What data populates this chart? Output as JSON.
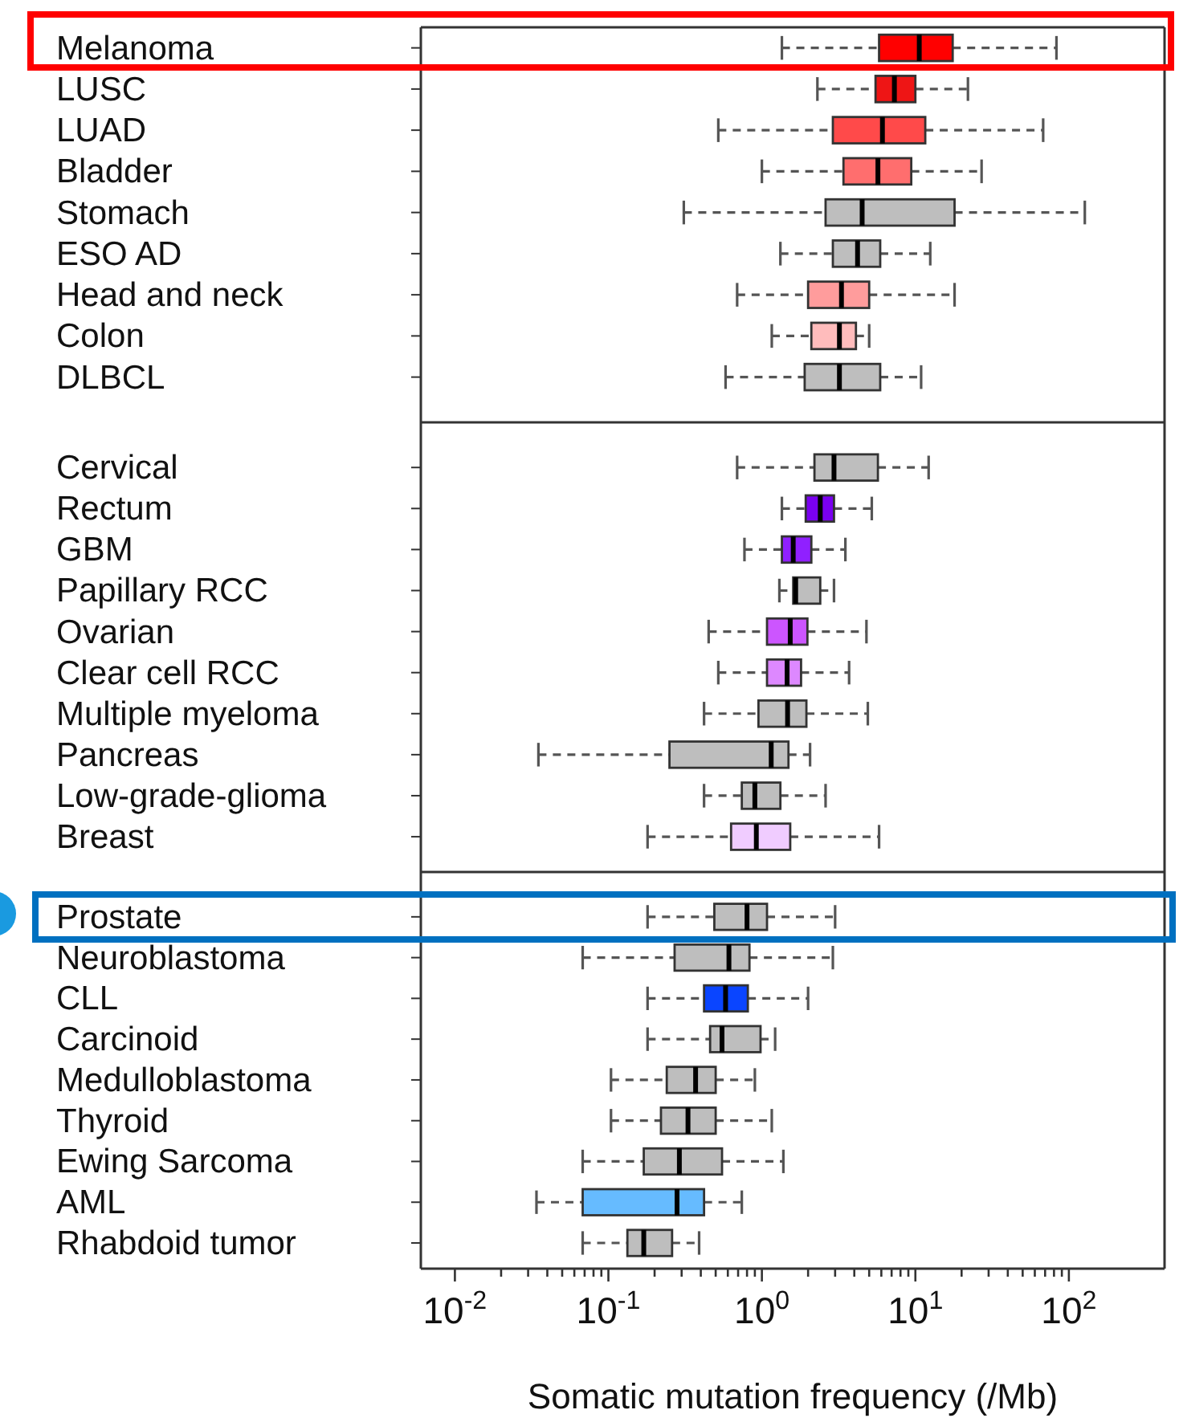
{
  "chart_data": [
    {
      "type": "box",
      "orientation": "horizontal",
      "log": "x",
      "tick_labels": "y",
      "xlim": [
        0.006,
        420
      ],
      "categories": [
        "Melanoma",
        "LUSC",
        "LUAD",
        "Bladder",
        "Stomach",
        "ESO AD",
        "Head and neck",
        "Colon",
        "DLBCL"
      ],
      "colors": [
        "#ff0000",
        "#ee1515",
        "#ff4a4a",
        "#ff6e6e",
        "#bebebe",
        "#bebebe",
        "#ff9c9c",
        "#ffbcbc",
        "#bebebe"
      ],
      "boxes": [
        {
          "low": 1.35,
          "q1": 5.8,
          "median": 10.6,
          "q3": 17.5,
          "high": 83
        },
        {
          "low": 2.3,
          "q1": 5.5,
          "median": 7.3,
          "q3": 10,
          "high": 22
        },
        {
          "low": 0.52,
          "q1": 2.9,
          "median": 6.1,
          "q3": 11.6,
          "high": 68
        },
        {
          "low": 1.0,
          "q1": 3.4,
          "median": 5.7,
          "q3": 9.4,
          "high": 27
        },
        {
          "low": 0.31,
          "q1": 2.6,
          "median": 4.5,
          "q3": 18,
          "high": 127
        },
        {
          "low": 1.32,
          "q1": 2.9,
          "median": 4.2,
          "q3": 5.9,
          "high": 12.5
        },
        {
          "low": 0.69,
          "q1": 2.0,
          "median": 3.3,
          "q3": 5.0,
          "high": 18
        },
        {
          "low": 1.16,
          "q1": 2.1,
          "median": 3.2,
          "q3": 4.1,
          "high": 5.0
        },
        {
          "low": 0.58,
          "q1": 1.9,
          "median": 3.2,
          "q3": 5.9,
          "high": 10.9
        }
      ]
    },
    {
      "type": "box",
      "orientation": "horizontal",
      "log": "x",
      "tick_labels": "y",
      "xlim": [
        0.006,
        420
      ],
      "categories": [
        "Cervical",
        "Rectum",
        "GBM",
        "Papillary RCC",
        "Ovarian",
        "Clear cell RCC",
        "Multiple myeloma",
        "Pancreas",
        "Low-grade-glioma",
        "Breast"
      ],
      "colors": [
        "#bebebe",
        "#7a00f0",
        "#9020ff",
        "#bebebe",
        "#cc55ff",
        "#dd88ff",
        "#bebebe",
        "#bebebe",
        "#bebebe",
        "#f0ccff"
      ],
      "boxes": [
        {
          "low": 0.69,
          "q1": 2.2,
          "median": 2.95,
          "q3": 5.7,
          "high": 12.2
        },
        {
          "low": 1.35,
          "q1": 1.93,
          "median": 2.4,
          "q3": 2.95,
          "high": 5.2
        },
        {
          "low": 0.77,
          "q1": 1.35,
          "median": 1.6,
          "q3": 2.1,
          "high": 3.5
        },
        {
          "low": 1.3,
          "q1": 1.6,
          "median": 1.66,
          "q3": 2.4,
          "high": 2.95
        },
        {
          "low": 0.45,
          "q1": 1.08,
          "median": 1.53,
          "q3": 1.98,
          "high": 4.8
        },
        {
          "low": 0.52,
          "q1": 1.08,
          "median": 1.46,
          "q3": 1.8,
          "high": 3.7
        },
        {
          "low": 0.42,
          "q1": 0.95,
          "median": 1.47,
          "q3": 1.95,
          "high": 4.9
        },
        {
          "low": 0.035,
          "q1": 0.25,
          "median": 1.15,
          "q3": 1.49,
          "high": 2.06
        },
        {
          "low": 0.42,
          "q1": 0.74,
          "median": 0.9,
          "q3": 1.32,
          "high": 2.6
        },
        {
          "low": 0.18,
          "q1": 0.63,
          "median": 0.92,
          "q3": 1.53,
          "high": 5.8
        }
      ]
    },
    {
      "type": "box",
      "orientation": "horizontal",
      "log": "x",
      "xlim": [
        0.006,
        420
      ],
      "xlabel": "Somatic mutation frequency (/Mb)",
      "xticks": [
        {
          "value": 0.01,
          "label": "10$^{-2}$"
        },
        {
          "value": 0.02,
          "label": null
        },
        {
          "value": 0.03,
          "label": null
        },
        {
          "value": 0.04,
          "label": null
        },
        {
          "value": 0.05,
          "label": null
        },
        {
          "value": 0.06,
          "label": null
        },
        {
          "value": 0.07,
          "label": null
        },
        {
          "value": 0.08,
          "label": null
        },
        {
          "value": 0.09,
          "label": null
        },
        {
          "value": 0.1,
          "label": "10$^{-1}$"
        },
        {
          "value": 0.2,
          "label": null
        },
        {
          "value": 0.3,
          "label": null
        },
        {
          "value": 0.4,
          "label": null
        },
        {
          "value": 0.5,
          "label": null
        },
        {
          "value": 0.6,
          "label": null
        },
        {
          "value": 0.7,
          "label": null
        },
        {
          "value": 0.8,
          "label": null
        },
        {
          "value": 0.9,
          "label": null
        },
        {
          "value": 1,
          "label": "10$^{0}$"
        },
        {
          "value": 2,
          "label": null
        },
        {
          "value": 3,
          "label": null
        },
        {
          "value": 4,
          "label": null
        },
        {
          "value": 5,
          "label": null
        },
        {
          "value": 6,
          "label": null
        },
        {
          "value": 7,
          "label": null
        },
        {
          "value": 8,
          "label": null
        },
        {
          "value": 9,
          "label": null
        },
        {
          "value": 10,
          "label": "10$^{1}$"
        },
        {
          "value": 20,
          "label": null
        },
        {
          "value": 30,
          "label": null
        },
        {
          "value": 40,
          "label": null
        },
        {
          "value": 50,
          "label": null
        },
        {
          "value": 60,
          "label": null
        },
        {
          "value": 70,
          "label": null
        },
        {
          "value": 80,
          "label": null
        },
        {
          "value": 90,
          "label": null
        },
        {
          "value": 100,
          "label": "10$^{2}$"
        }
      ],
      "categories": [
        "Prostate",
        "Neuroblastoma",
        "CLL",
        "Carcinoid",
        "Medulloblastoma",
        "Thyroid",
        "Ewing Sarcoma",
        "AML",
        "Rhabdoid tumor"
      ],
      "colors": [
        "#bebebe",
        "#bebebe",
        "#0a45ff",
        "#bebebe",
        "#bebebe",
        "#bebebe",
        "#bebebe",
        "#66bbff",
        "#bebebe"
      ],
      "boxes": [
        {
          "low": 0.18,
          "q1": 0.49,
          "median": 0.8,
          "q3": 1.08,
          "high": 3.0
        },
        {
          "low": 0.068,
          "q1": 0.27,
          "median": 0.61,
          "q3": 0.83,
          "high": 2.9
        },
        {
          "low": 0.18,
          "q1": 0.42,
          "median": 0.58,
          "q3": 0.81,
          "high": 2.0
        },
        {
          "low": 0.18,
          "q1": 0.46,
          "median": 0.55,
          "q3": 0.98,
          "high": 1.22
        },
        {
          "low": 0.104,
          "q1": 0.24,
          "median": 0.37,
          "q3": 0.5,
          "high": 0.9
        },
        {
          "low": 0.104,
          "q1": 0.22,
          "median": 0.33,
          "q3": 0.5,
          "high": 1.16
        },
        {
          "low": 0.068,
          "q1": 0.17,
          "median": 0.29,
          "q3": 0.55,
          "high": 1.38
        },
        {
          "low": 0.034,
          "q1": 0.068,
          "median": 0.28,
          "q3": 0.42,
          "high": 0.74
        },
        {
          "low": 0.068,
          "q1": 0.133,
          "median": 0.17,
          "q3": 0.26,
          "high": 0.39
        }
      ]
    }
  ]
}
